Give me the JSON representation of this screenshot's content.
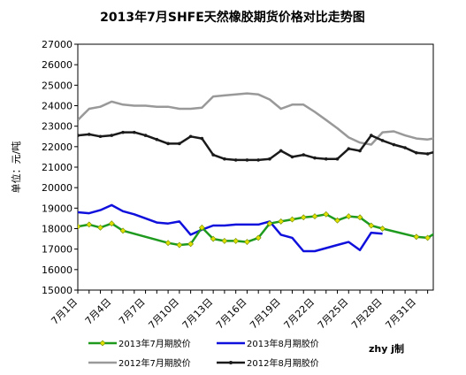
{
  "chart_data": {
    "type": "line",
    "title": "2013年7月SHFE天然橡胶期货价格对比走势图",
    "ylabel": "单位：元/吨",
    "xlabel": "",
    "ylim": [
      15000,
      27000
    ],
    "ytick_step": 1000,
    "xlim": [
      1,
      32.5
    ],
    "grid": false,
    "legend_position": "bottom",
    "x_ticks": [
      {
        "x": 1,
        "label": "7月1日"
      },
      {
        "x": 4,
        "label": "7月4日"
      },
      {
        "x": 7,
        "label": "7月7日"
      },
      {
        "x": 10,
        "label": "7月10日"
      },
      {
        "x": 13,
        "label": "7月13日"
      },
      {
        "x": 16,
        "label": "7月16日"
      },
      {
        "x": 19,
        "label": "7月19日"
      },
      {
        "x": 22,
        "label": "7月22日"
      },
      {
        "x": 25,
        "label": "7月25日"
      },
      {
        "x": 28,
        "label": "7月28日"
      },
      {
        "x": 31,
        "label": "7月31日"
      }
    ],
    "series": [
      {
        "name": "2013年7月期胶价",
        "color": "#1e9a1e",
        "marker": "diamond",
        "marker_color": "#e0e000",
        "points": [
          [
            1,
            18100
          ],
          [
            2,
            18200
          ],
          [
            3,
            18050
          ],
          [
            4,
            18250
          ],
          [
            5,
            17900
          ],
          [
            9,
            17300
          ],
          [
            10,
            17200
          ],
          [
            11,
            17250
          ],
          [
            12,
            18050
          ],
          [
            13,
            17500
          ],
          [
            14,
            17400
          ],
          [
            15,
            17400
          ],
          [
            16,
            17350
          ],
          [
            17,
            17550
          ],
          [
            18,
            18250
          ],
          [
            19,
            18350
          ],
          [
            20,
            18450
          ],
          [
            21,
            18550
          ],
          [
            22,
            18600
          ],
          [
            23,
            18700
          ],
          [
            24,
            18400
          ],
          [
            25,
            18600
          ],
          [
            26,
            18550
          ],
          [
            27,
            18150
          ],
          [
            28,
            18000
          ],
          [
            31,
            17600
          ],
          [
            32,
            17550
          ],
          [
            33,
            17900
          ]
        ]
      },
      {
        "name": "2013年8月期胶价",
        "color": "#1010dd",
        "marker": "none",
        "points": [
          [
            1,
            18800
          ],
          [
            2,
            18750
          ],
          [
            3,
            18900
          ],
          [
            4,
            19150
          ],
          [
            5,
            18850
          ],
          [
            6,
            18700
          ],
          [
            7,
            18500
          ],
          [
            8,
            18300
          ],
          [
            9,
            18250
          ],
          [
            10,
            18350
          ],
          [
            11,
            17700
          ],
          [
            12,
            17950
          ],
          [
            13,
            18150
          ],
          [
            14,
            18150
          ],
          [
            15,
            18200
          ],
          [
            16,
            18200
          ],
          [
            17,
            18200
          ],
          [
            18,
            18350
          ],
          [
            19,
            17700
          ],
          [
            20,
            17550
          ],
          [
            21,
            16900
          ],
          [
            22,
            16900
          ],
          [
            23,
            17050
          ],
          [
            24,
            17200
          ],
          [
            25,
            17350
          ],
          [
            26,
            16950
          ],
          [
            27,
            17800
          ],
          [
            28,
            17750
          ]
        ]
      },
      {
        "name": "2012年7月期胶价",
        "color": "#999999",
        "marker": "none",
        "points": [
          [
            1,
            23300
          ],
          [
            2,
            23850
          ],
          [
            3,
            23950
          ],
          [
            4,
            24200
          ],
          [
            5,
            24050
          ],
          [
            6,
            24000
          ],
          [
            7,
            24000
          ],
          [
            8,
            23950
          ],
          [
            9,
            23950
          ],
          [
            10,
            23850
          ],
          [
            11,
            23850
          ],
          [
            12,
            23900
          ],
          [
            13,
            24450
          ],
          [
            14,
            24500
          ],
          [
            15,
            24550
          ],
          [
            16,
            24600
          ],
          [
            17,
            24550
          ],
          [
            18,
            24300
          ],
          [
            19,
            23850
          ],
          [
            20,
            24050
          ],
          [
            21,
            24050
          ],
          [
            22,
            23700
          ],
          [
            23,
            23300
          ],
          [
            24,
            22900
          ],
          [
            25,
            22450
          ],
          [
            26,
            22200
          ],
          [
            27,
            22100
          ],
          [
            28,
            22700
          ],
          [
            29,
            22750
          ],
          [
            30,
            22550
          ],
          [
            31,
            22400
          ],
          [
            32,
            22350
          ],
          [
            33,
            22450
          ]
        ]
      },
      {
        "name": "2012年8月期胶价",
        "color": "#1a1a1a",
        "marker": "dot",
        "marker_color": "#1a1a1a",
        "points": [
          [
            1,
            22550
          ],
          [
            2,
            22600
          ],
          [
            3,
            22500
          ],
          [
            4,
            22550
          ],
          [
            5,
            22700
          ],
          [
            6,
            22700
          ],
          [
            7,
            22550
          ],
          [
            8,
            22350
          ],
          [
            9,
            22150
          ],
          [
            10,
            22150
          ],
          [
            11,
            22500
          ],
          [
            12,
            22400
          ],
          [
            13,
            21600
          ],
          [
            14,
            21400
          ],
          [
            15,
            21350
          ],
          [
            16,
            21350
          ],
          [
            17,
            21350
          ],
          [
            18,
            21400
          ],
          [
            19,
            21800
          ],
          [
            20,
            21500
          ],
          [
            21,
            21600
          ],
          [
            22,
            21450
          ],
          [
            23,
            21400
          ],
          [
            24,
            21400
          ],
          [
            25,
            21900
          ],
          [
            26,
            21800
          ],
          [
            27,
            22550
          ],
          [
            28,
            22300
          ],
          [
            29,
            22100
          ],
          [
            30,
            21950
          ],
          [
            31,
            21700
          ],
          [
            32,
            21650
          ],
          [
            33,
            21800
          ],
          [
            34,
            21500
          ]
        ]
      }
    ],
    "signature": "zhy j制"
  }
}
